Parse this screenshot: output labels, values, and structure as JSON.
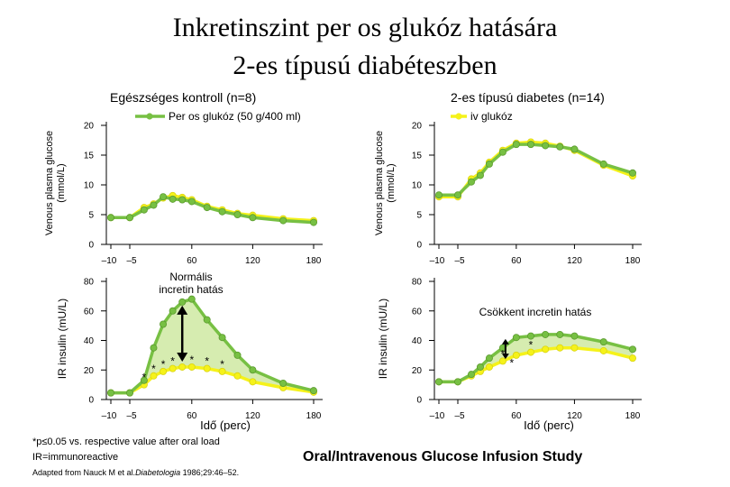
{
  "title_line1": "Inkretinszint per os glukóz hatására",
  "title_line2": "2-es típusú diabéteszben",
  "footnote_sig": "*p≤0.05 vs. respective value after oral load",
  "footnote_ir": "IR=immunoreactive",
  "source_prefix": "Adapted from Nauck M et al.",
  "source_journal": "Diabetologia",
  "source_suffix": " 1986;29:46–52.",
  "study_name": "Oral/Intravenous Glucose Infusion Study",
  "colors": {
    "oral": "#77c043",
    "iv": "#f5f21a",
    "fill": "#d6ecb0",
    "text": "#000000"
  },
  "chart_data": [
    {
      "id": "glucose-healthy",
      "type": "line",
      "panel_title": "Egészséges kontroll (n=8)",
      "legend_label": "Per os glukóz (50 g/400 ml)",
      "ylabel": "Venous plasma glucose (mmol/L)",
      "xlabel": "",
      "xlim": [
        -15,
        185
      ],
      "ylim": [
        0,
        21
      ],
      "yticks": [
        0,
        5,
        10,
        15,
        20
      ],
      "xticks": [
        -10,
        -5,
        60,
        120,
        180
      ],
      "xtick_labels": [
        "–10",
        "–5",
        "60",
        "120",
        "180"
      ],
      "series": [
        {
          "name": "Per os glukóz",
          "x": [
            -10,
            -5,
            10,
            20,
            30,
            40,
            50,
            60,
            75,
            90,
            105,
            120,
            150,
            180
          ],
          "values": [
            4.5,
            4.5,
            5.8,
            6.6,
            8.0,
            7.6,
            7.5,
            7.2,
            6.2,
            5.5,
            5.0,
            4.5,
            4.0,
            3.7
          ]
        },
        {
          "name": "Intravénás glukóz",
          "x": [
            -10,
            -5,
            10,
            20,
            30,
            40,
            50,
            60,
            75,
            90,
            105,
            120,
            150,
            180
          ],
          "values": [
            4.5,
            4.5,
            6.2,
            6.8,
            7.8,
            8.2,
            7.9,
            7.5,
            6.4,
            5.8,
            5.2,
            4.9,
            4.3,
            4.0
          ]
        }
      ]
    },
    {
      "id": "glucose-diabetes",
      "type": "line",
      "panel_title": "2-es típusú diabetes (n=14)",
      "legend_label": "iv glukóz",
      "ylabel": "Venous plasma glucose (mmol/L)",
      "xlabel": "",
      "xlim": [
        -15,
        185
      ],
      "ylim": [
        0,
        21
      ],
      "yticks": [
        0,
        5,
        10,
        15,
        20
      ],
      "xticks": [
        -10,
        -5,
        60,
        120,
        180
      ],
      "xtick_labels": [
        "–10",
        "–5",
        "60",
        "120",
        "180"
      ],
      "series": [
        {
          "name": "Per os glukóz",
          "x": [
            -10,
            -5,
            10,
            20,
            30,
            45,
            60,
            75,
            90,
            105,
            120,
            150,
            180
          ],
          "values": [
            8.3,
            8.3,
            10.5,
            11.6,
            13.5,
            15.5,
            16.8,
            16.8,
            16.6,
            16.4,
            16.0,
            13.5,
            12.0
          ]
        },
        {
          "name": "Intravénás glukóz",
          "x": [
            -10,
            -5,
            10,
            20,
            30,
            45,
            60,
            75,
            90,
            105,
            120,
            150,
            180
          ],
          "values": [
            8.0,
            8.0,
            11.0,
            12.0,
            13.8,
            15.8,
            17.0,
            17.2,
            17.0,
            16.5,
            15.8,
            13.3,
            11.5
          ]
        }
      ]
    },
    {
      "id": "insulin-healthy",
      "type": "area",
      "ylabel": "IR insulin (mU/L)",
      "xlabel": "Idő (perc)",
      "xlim": [
        -15,
        185
      ],
      "ylim": [
        0,
        84
      ],
      "yticks": [
        0,
        20,
        40,
        60,
        80
      ],
      "xticks": [
        -10,
        -5,
        60,
        120,
        180
      ],
      "xtick_labels": [
        "–10",
        "–5",
        "60",
        "120",
        "180"
      ],
      "annotation": "Normális\nincretin hatás",
      "significance_x": [
        10,
        20,
        30,
        40,
        50,
        60,
        75,
        90
      ],
      "series": [
        {
          "name": "Per os glukóz",
          "x": [
            -10,
            -5,
            10,
            20,
            30,
            40,
            50,
            60,
            75,
            90,
            105,
            120,
            150,
            180
          ],
          "values": [
            4.5,
            4.5,
            13.0,
            35.0,
            51.0,
            60.0,
            66.0,
            68.0,
            54.0,
            42.0,
            30.0,
            20.0,
            11.0,
            6.0
          ]
        },
        {
          "name": "Intravénás glukóz",
          "x": [
            -10,
            -5,
            10,
            20,
            30,
            40,
            50,
            60,
            75,
            90,
            105,
            120,
            150,
            180
          ],
          "values": [
            4.5,
            4.5,
            10.0,
            16.0,
            19.0,
            21.0,
            22.0,
            22.0,
            21.0,
            19.0,
            16.0,
            12.0,
            8.0,
            5.0
          ]
        }
      ]
    },
    {
      "id": "insulin-diabetes",
      "type": "area",
      "ylabel": "IR insulin (mU/L)",
      "xlabel": "Idő (perc)",
      "xlim": [
        -15,
        185
      ],
      "ylim": [
        0,
        84
      ],
      "yticks": [
        0,
        20,
        40,
        60,
        80
      ],
      "xticks": [
        -10,
        -5,
        60,
        120,
        180
      ],
      "xtick_labels": [
        "–10",
        "–5",
        "60",
        "120",
        "180"
      ],
      "annotation": "Csökkent incretin hatás",
      "significance_x": [
        45,
        55,
        75
      ],
      "series": [
        {
          "name": "Per os glukóz",
          "x": [
            -10,
            -5,
            10,
            20,
            30,
            45,
            60,
            75,
            90,
            105,
            120,
            150,
            180
          ],
          "values": [
            12.0,
            12.0,
            17.0,
            22.0,
            28.0,
            35.0,
            42.0,
            43.0,
            44.0,
            44.0,
            43.0,
            39.0,
            34.0
          ]
        },
        {
          "name": "Intravénás glukóz",
          "x": [
            -10,
            -5,
            10,
            20,
            30,
            45,
            60,
            75,
            90,
            105,
            120,
            150,
            180
          ],
          "values": [
            12.0,
            12.0,
            16.0,
            19.0,
            22.0,
            26.0,
            30.0,
            32.0,
            34.0,
            35.0,
            35.0,
            33.0,
            28.0
          ]
        }
      ]
    }
  ]
}
